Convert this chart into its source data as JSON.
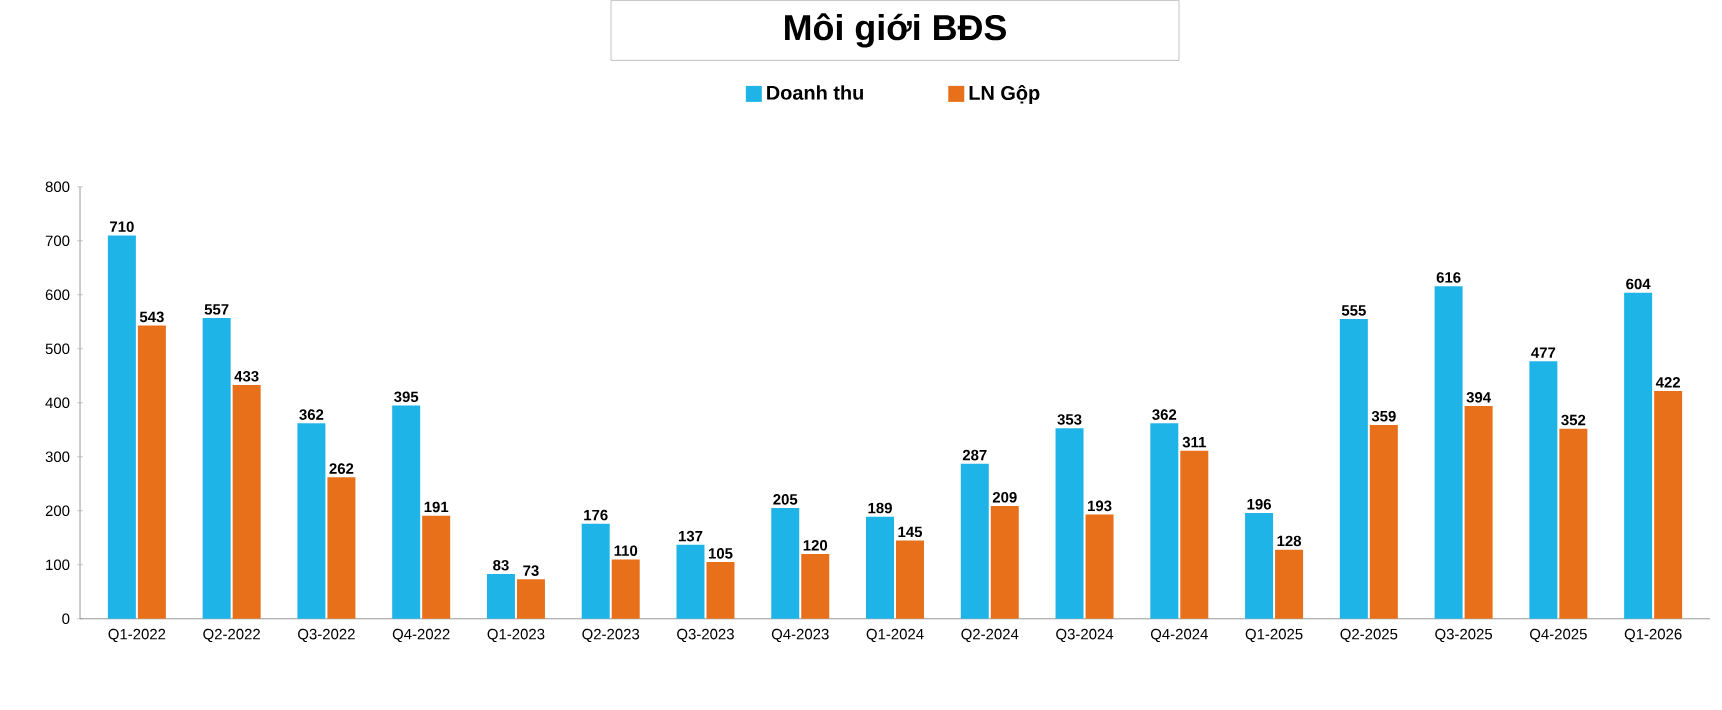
{
  "chart_data": {
    "type": "bar",
    "title": "Môi giới BĐS",
    "categories": [
      "Q1-2022",
      "Q2-2022",
      "Q3-2022",
      "Q4-2022",
      "Q1-2023",
      "Q2-2023",
      "Q3-2023",
      "Q4-2023",
      "Q1-2024",
      "Q2-2024",
      "Q3-2024",
      "Q4-2024",
      "Q1-2025",
      "Q2-2025",
      "Q3-2025",
      "Q4-2025",
      "Q1-2026"
    ],
    "series": [
      {
        "name": "Doanh thu",
        "color": "#1fb4e8",
        "values": [
          710,
          557,
          362,
          395,
          83,
          176,
          137,
          205,
          189,
          287,
          353,
          362,
          196,
          555,
          616,
          477,
          604
        ]
      },
      {
        "name": "LN Gộp",
        "color": "#e8701a",
        "values": [
          543,
          433,
          262,
          191,
          73,
          110,
          105,
          120,
          145,
          209,
          193,
          311,
          128,
          359,
          394,
          352,
          422
        ]
      }
    ],
    "ylim": [
      0,
      800
    ],
    "yticks": [
      0,
      100,
      200,
      300,
      400,
      500,
      600,
      700,
      800
    ],
    "data_labels": true,
    "legend": "top"
  }
}
